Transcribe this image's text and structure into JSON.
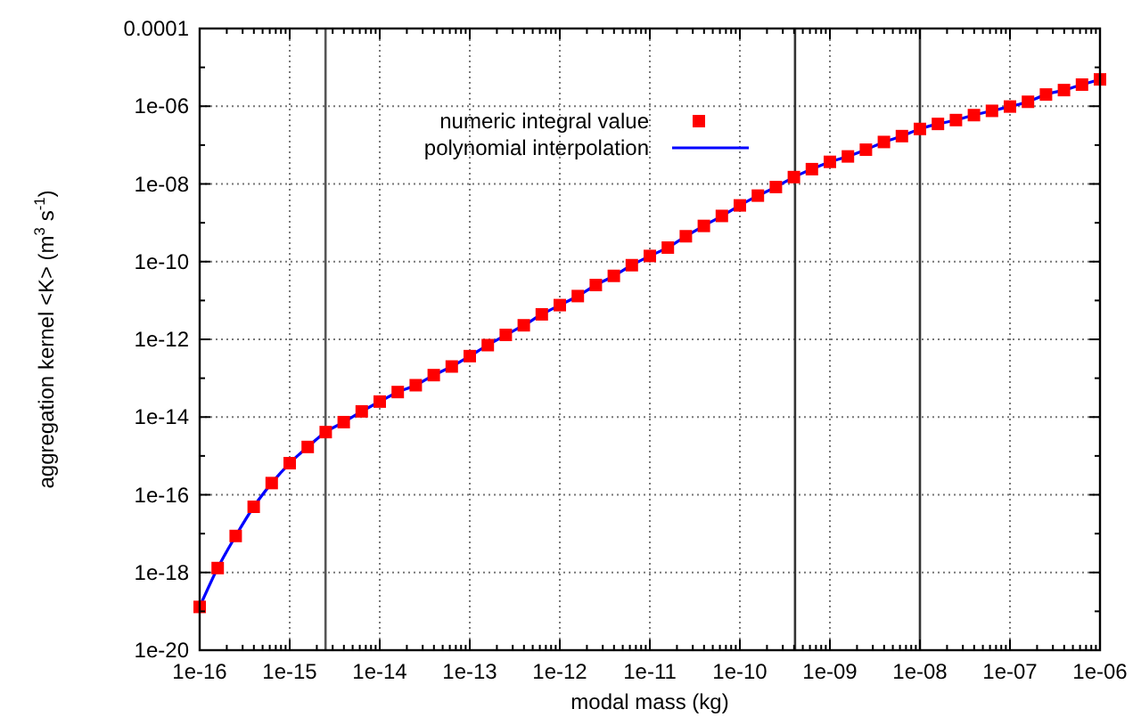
{
  "chart_data": {
    "type": "scatter",
    "xlabel": "modal mass (kg)",
    "ylabel": "aggregation kernel <K> (m$^{3}$ s$^{-1}$)",
    "log": "xy",
    "grid": true,
    "legend": "top",
    "xlim": [
      1e-16,
      1e-06
    ],
    "ylim": [
      1e-20,
      0.0001
    ],
    "xticks": [
      {
        "value": 1e-16,
        "label": "1e-16"
      },
      {
        "value": 1e-15,
        "label": "1e-15"
      },
      {
        "value": 1e-14,
        "label": "1e-14"
      },
      {
        "value": 1e-13,
        "label": "1e-13"
      },
      {
        "value": 1e-12,
        "label": "1e-12"
      },
      {
        "value": 1e-11,
        "label": "1e-11"
      },
      {
        "value": 1e-10,
        "label": "1e-10"
      },
      {
        "value": 1e-09,
        "label": "1e-09"
      },
      {
        "value": 1e-08,
        "label": "1e-08"
      },
      {
        "value": 1e-07,
        "label": "1e-07"
      },
      {
        "value": 1e-06,
        "label": "1e-06"
      }
    ],
    "yticks": [
      {
        "value": 1e-20,
        "label": "1e-20"
      },
      {
        "value": 1e-18,
        "label": "1e-18"
      },
      {
        "value": 1e-16,
        "label": "1e-16"
      },
      {
        "value": 1e-14,
        "label": "1e-14"
      },
      {
        "value": 1e-12,
        "label": "1e-12"
      },
      {
        "value": 1e-10,
        "label": "1e-10"
      },
      {
        "value": 1e-08,
        "label": "1e-08"
      },
      {
        "value": 1e-06,
        "label": "1e-06"
      },
      {
        "value": 0.0001,
        "label": "0.0001"
      }
    ],
    "ref_lines": [
      {
        "axis": "x",
        "value": 2.5e-15,
        "color": "#555555"
      },
      {
        "axis": "x",
        "value": 4.1e-10,
        "color": "#333333"
      },
      {
        "axis": "x",
        "value": 1e-08,
        "color": "#333333"
      }
    ],
    "x": [
      1e-16,
      1.585e-16,
      2.512e-16,
      3.981e-16,
      6.31e-16,
      1e-15,
      1.585e-15,
      2.512e-15,
      3.981e-15,
      6.31e-15,
      1e-14,
      1.585e-14,
      2.512e-14,
      3.981e-14,
      6.31e-14,
      1e-13,
      1.585e-13,
      2.512e-13,
      3.981e-13,
      6.31e-13,
      1e-12,
      1.585e-12,
      2.512e-12,
      3.981e-12,
      6.31e-12,
      1e-11,
      1.585e-11,
      2.512e-11,
      3.981e-11,
      6.31e-11,
      1e-10,
      1.585e-10,
      2.512e-10,
      3.981e-10,
      6.31e-10,
      1e-09,
      1.585e-09,
      2.512e-09,
      3.981e-09,
      6.31e-09,
      1e-08,
      1.585e-08,
      2.512e-08,
      3.981e-08,
      6.31e-08,
      1e-07,
      1.585e-07,
      2.512e-07,
      3.981e-07,
      6.31e-07,
      1e-06
    ],
    "series": [
      {
        "name": "numeric integral value",
        "marker": "square",
        "color": "#ff0000",
        "values": [
          1.3e-19,
          1.3e-18,
          8.7e-18,
          4.9e-17,
          2e-16,
          6.5e-16,
          1.7e-15,
          4.1e-15,
          7.4e-15,
          1.4e-14,
          2.5e-14,
          4.4e-14,
          6.6e-14,
          1.2e-13,
          2e-13,
          3.7e-13,
          7.1e-13,
          1.3e-12,
          2.3e-12,
          4.4e-12,
          7.6e-12,
          1.3e-11,
          2.5e-11,
          4.3e-11,
          8.1e-11,
          1.4e-10,
          2.3e-10,
          4.5e-10,
          8.3e-10,
          1.5e-09,
          2.8e-09,
          5e-09,
          8.3e-09,
          1.5e-08,
          2.4e-08,
          3.7e-08,
          5.1e-08,
          7.6e-08,
          1.2e-07,
          1.7e-07,
          2.6e-07,
          3.5e-07,
          4.4e-07,
          5.9e-07,
          7.6e-07,
          9.8e-07,
          1.3e-06,
          2e-06,
          2.6e-06,
          3.6e-06,
          4.9e-06
        ]
      },
      {
        "name": "polynomial interpolation",
        "type": "line",
        "line_style": "solid",
        "color": "#0000ff",
        "values": [
          1.3e-19,
          1.3e-18,
          8.7e-18,
          4.9e-17,
          2e-16,
          6.5e-16,
          1.7e-15,
          4.1e-15,
          7.4e-15,
          1.4e-14,
          2.5e-14,
          4.4e-14,
          6.6e-14,
          1.2e-13,
          2e-13,
          3.7e-13,
          7.1e-13,
          1.3e-12,
          2.3e-12,
          4.4e-12,
          7.6e-12,
          1.3e-11,
          2.5e-11,
          4.3e-11,
          8.1e-11,
          1.4e-10,
          2.3e-10,
          4.5e-10,
          8.3e-10,
          1.5e-09,
          2.8e-09,
          5e-09,
          8.3e-09,
          1.5e-08,
          2.4e-08,
          3.7e-08,
          5.1e-08,
          7.6e-08,
          1.2e-07,
          1.7e-07,
          2.6e-07,
          3.5e-07,
          4.4e-07,
          5.9e-07,
          7.6e-07,
          9.8e-07,
          1.3e-06,
          2e-06,
          2.6e-06,
          3.6e-06,
          4.9e-06
        ]
      }
    ]
  }
}
